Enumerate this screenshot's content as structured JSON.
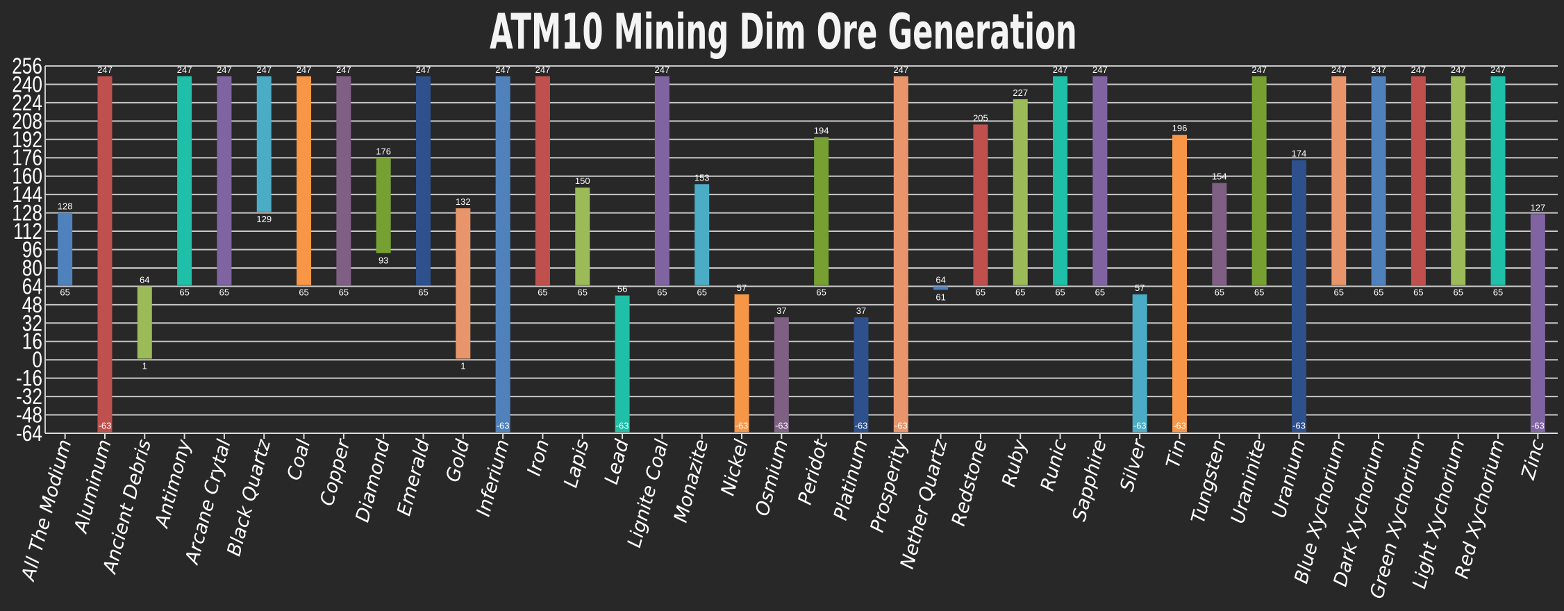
{
  "chart_data": {
    "type": "bar",
    "subtype": "floating-range",
    "title": "ATM10 Mining Dim Ore Generation",
    "xlabel": "",
    "ylabel": "",
    "ylim": [
      -64,
      256
    ],
    "yticks": [
      256,
      240,
      224,
      208,
      192,
      176,
      160,
      144,
      128,
      112,
      96,
      80,
      64,
      48,
      32,
      16,
      0,
      -16,
      -32,
      -48,
      -64
    ],
    "grid": true,
    "legend": "none",
    "background": "#282828",
    "categories": [
      "All The Modium",
      "Aluminum",
      "Ancient Debris",
      "Antimony",
      "Arcane Crytal",
      "Black Quartz",
      "Coal",
      "Copper",
      "Diamond",
      "Emerald",
      "Gold",
      "Inferium",
      "Iron",
      "Lapis",
      "Lead",
      "Lignite Coal",
      "Monazite",
      "Nickel",
      "Osmium",
      "Peridot",
      "Platinum",
      "Prosperity",
      "Nether Quartz",
      "Redstone",
      "Ruby",
      "Runic",
      "Sapphire",
      "Silver",
      "Tin",
      "Tungsten",
      "Uraninite",
      "Uranium",
      "Blue Xychorium",
      "Dark Xychorium",
      "Green Xychorium",
      "Light Xychorium",
      "Red Xychorium",
      "Zinc"
    ],
    "low": [
      65,
      -63,
      1,
      65,
      65,
      129,
      65,
      65,
      93,
      65,
      1,
      -63,
      65,
      65,
      -63,
      65,
      65,
      -63,
      -63,
      65,
      -63,
      -63,
      61,
      65,
      65,
      65,
      65,
      -63,
      -63,
      65,
      65,
      -63,
      65,
      65,
      65,
      65,
      65,
      -63
    ],
    "high": [
      128,
      247,
      64,
      247,
      247,
      247,
      247,
      247,
      176,
      247,
      132,
      247,
      247,
      150,
      56,
      247,
      153,
      57,
      37,
      194,
      37,
      247,
      64,
      205,
      227,
      247,
      247,
      57,
      196,
      154,
      247,
      174,
      247,
      247,
      247,
      247,
      247,
      127
    ],
    "colors": [
      "#4f81bd",
      "#c0504d",
      "#9bbb59",
      "#1fbfa8",
      "#8064a2",
      "#4bacc6",
      "#f79646",
      "#7f6084",
      "#77a033",
      "#2e508c",
      "#e8956b"
    ]
  }
}
